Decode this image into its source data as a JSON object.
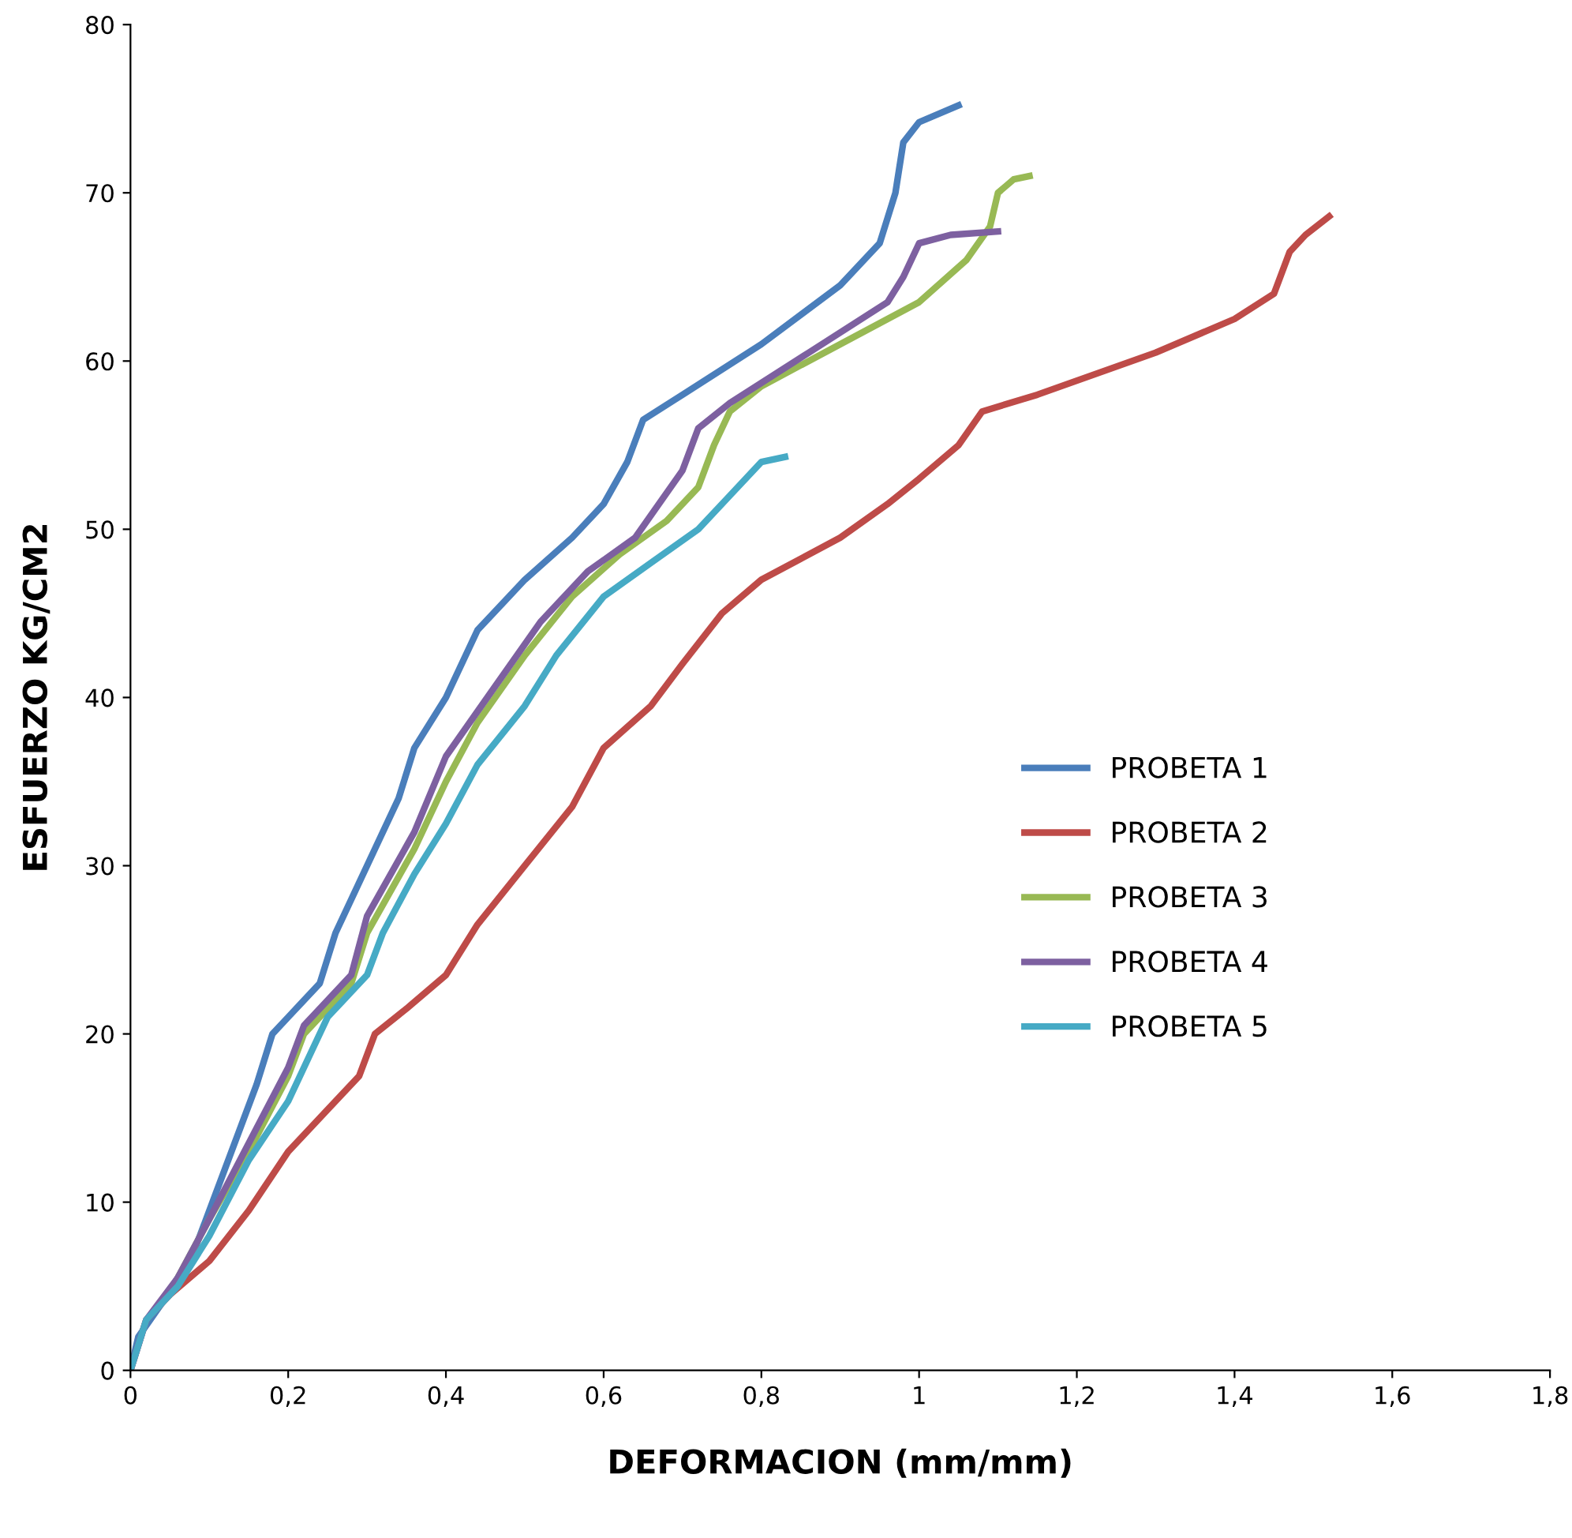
{
  "chart_data": {
    "type": "line",
    "xlabel": "DEFORMACION (mm/mm)",
    "ylabel": "ESFUERZO KG/CM2",
    "xlim": [
      0,
      1.8
    ],
    "ylim": [
      0,
      80
    ],
    "xticks": [
      0,
      {
        "value": 0.2,
        "label": "0,2"
      },
      {
        "value": 0.4,
        "label": "0,4"
      },
      {
        "value": 0.6,
        "label": "0,6"
      },
      {
        "value": 0.8,
        "label": "0,8"
      },
      1,
      {
        "value": 1.2,
        "label": "1,2"
      },
      {
        "value": 1.4,
        "label": "1,4"
      },
      {
        "value": 1.6,
        "label": "1,6"
      },
      {
        "value": 1.8,
        "label": "1,8"
      }
    ],
    "yticks": [
      0,
      10,
      20,
      30,
      40,
      50,
      60,
      70,
      80
    ],
    "grid": false,
    "legend": "center right",
    "marker": "none",
    "line_style": "solid",
    "series": [
      {
        "name": "PROBETA 1",
        "color": "#4a7ebb",
        "x": [
          0,
          0.01,
          0.04,
          0.08,
          0.12,
          0.16,
          0.18,
          0.2,
          0.24,
          0.26,
          0.3,
          0.34,
          0.36,
          0.4,
          0.44,
          0.5,
          0.56,
          0.6,
          0.63,
          0.65,
          0.7,
          0.8,
          0.9,
          0.95,
          0.97,
          0.98,
          1.0,
          1.05
        ],
        "values": [
          0,
          2,
          4,
          7,
          12,
          17,
          20,
          21,
          23,
          26,
          30,
          34,
          37,
          40,
          44,
          47,
          49.5,
          51.5,
          54,
          56.5,
          58,
          61,
          64.5,
          67,
          70,
          73,
          74.2,
          75.2
        ]
      },
      {
        "name": "PROBETA 2",
        "color": "#be4b48",
        "x": [
          0,
          0.02,
          0.05,
          0.1,
          0.15,
          0.2,
          0.25,
          0.29,
          0.31,
          0.35,
          0.4,
          0.44,
          0.5,
          0.56,
          0.6,
          0.66,
          0.7,
          0.75,
          0.8,
          0.9,
          0.96,
          1.0,
          1.05,
          1.08,
          1.15,
          1.3,
          1.4,
          1.45,
          1.47,
          1.49,
          1.52
        ],
        "values": [
          0,
          3,
          4.5,
          6.5,
          9.5,
          13,
          15.5,
          17.5,
          20,
          21.5,
          23.5,
          26.5,
          30,
          33.5,
          37,
          39.5,
          42,
          45,
          47,
          49.5,
          51.5,
          53,
          55,
          57,
          58,
          60.5,
          62.5,
          64,
          66.5,
          67.5,
          68.6
        ]
      },
      {
        "name": "PROBETA 3",
        "color": "#98b954",
        "x": [
          0.06,
          0.1,
          0.15,
          0.2,
          0.22,
          0.28,
          0.3,
          0.36,
          0.4,
          0.44,
          0.5,
          0.56,
          0.62,
          0.68,
          0.72,
          0.74,
          0.76,
          0.8,
          0.9,
          1.0,
          1.06,
          1.09,
          1.1,
          1.12,
          1.14
        ],
        "values": [
          5.5,
          9,
          13,
          17.5,
          20,
          23,
          26,
          31,
          35,
          38.5,
          42.5,
          46,
          48.5,
          50.5,
          52.5,
          55,
          57,
          58.5,
          61,
          63.5,
          66,
          68,
          70,
          70.8,
          71
        ]
      },
      {
        "name": "PROBETA 4",
        "color": "#7d60a0",
        "x": [
          0,
          0.02,
          0.06,
          0.1,
          0.15,
          0.2,
          0.22,
          0.28,
          0.3,
          0.36,
          0.4,
          0.46,
          0.52,
          0.58,
          0.64,
          0.7,
          0.72,
          0.76,
          0.86,
          0.96,
          0.98,
          1.0,
          1.04,
          1.1
        ],
        "values": [
          0,
          3,
          5.5,
          9,
          13.5,
          18,
          20.5,
          23.5,
          27,
          32,
          36.5,
          40.5,
          44.5,
          47.5,
          49.5,
          53.5,
          56,
          57.5,
          60.5,
          63.5,
          65,
          67,
          67.5,
          67.7
        ]
      },
      {
        "name": "PROBETA 5",
        "color": "#46aac5",
        "x": [
          0,
          0.02,
          0.06,
          0.1,
          0.15,
          0.2,
          0.23,
          0.25,
          0.3,
          0.32,
          0.36,
          0.4,
          0.44,
          0.5,
          0.54,
          0.6,
          0.66,
          0.72,
          0.76,
          0.8,
          0.83
        ],
        "values": [
          0,
          3,
          5,
          8,
          12.5,
          16,
          19,
          21,
          23.5,
          26,
          29.5,
          32.5,
          36,
          39.5,
          42.5,
          46,
          48,
          50,
          52,
          54,
          54.3
        ]
      }
    ]
  }
}
